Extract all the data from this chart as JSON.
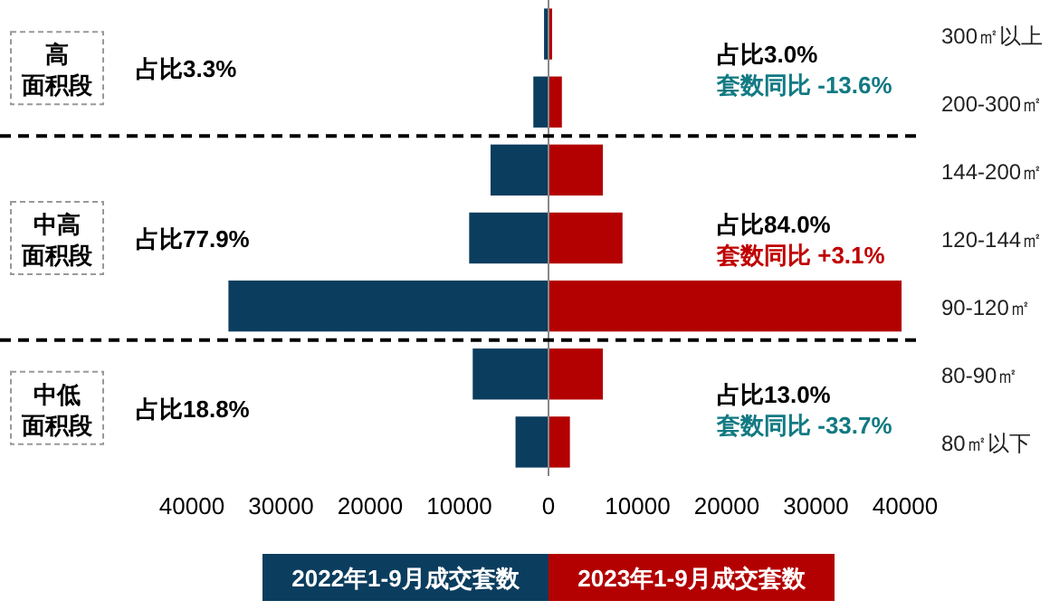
{
  "chart_data": {
    "type": "bar",
    "orientation": "horizontal",
    "stacked": true,
    "categories": [
      "300㎡以上",
      "200-300㎡",
      "144-200㎡",
      "120-144㎡",
      "90-120㎡",
      "80-90㎡",
      "80㎡以下"
    ],
    "series": [
      {
        "name": "2022年1-9月成交套数",
        "color": "#0b3d5e",
        "values": [
          -500,
          -1700,
          -6500,
          -8900,
          -35900,
          -8500,
          -3700
        ]
      },
      {
        "name": "2023年1-9月成交套数",
        "color": "#b30000",
        "values": [
          400,
          1500,
          6100,
          8300,
          39600,
          6100,
          2400
        ]
      }
    ],
    "xlim": [
      -40000,
      40000
    ],
    "xticks": [
      {
        "value": -40000,
        "label": "40000"
      },
      {
        "value": -30000,
        "label": "30000"
      },
      {
        "value": -20000,
        "label": "20000"
      },
      {
        "value": -10000,
        "label": "10000"
      },
      0,
      10000,
      20000,
      30000,
      40000
    ],
    "annotations": [
      "高",
      "面积段",
      "占比3.3%",
      "占比3.0%",
      "套数同比 -13.6%",
      "中高",
      "面积段",
      "占比77.9%",
      "占比84.0%",
      "套数同比 +3.1%",
      "中低",
      "面积段",
      "占比18.8%",
      "占比13.0%",
      "套数同比 -33.7%"
    ],
    "legend": "bottom",
    "grid": false
  }
}
